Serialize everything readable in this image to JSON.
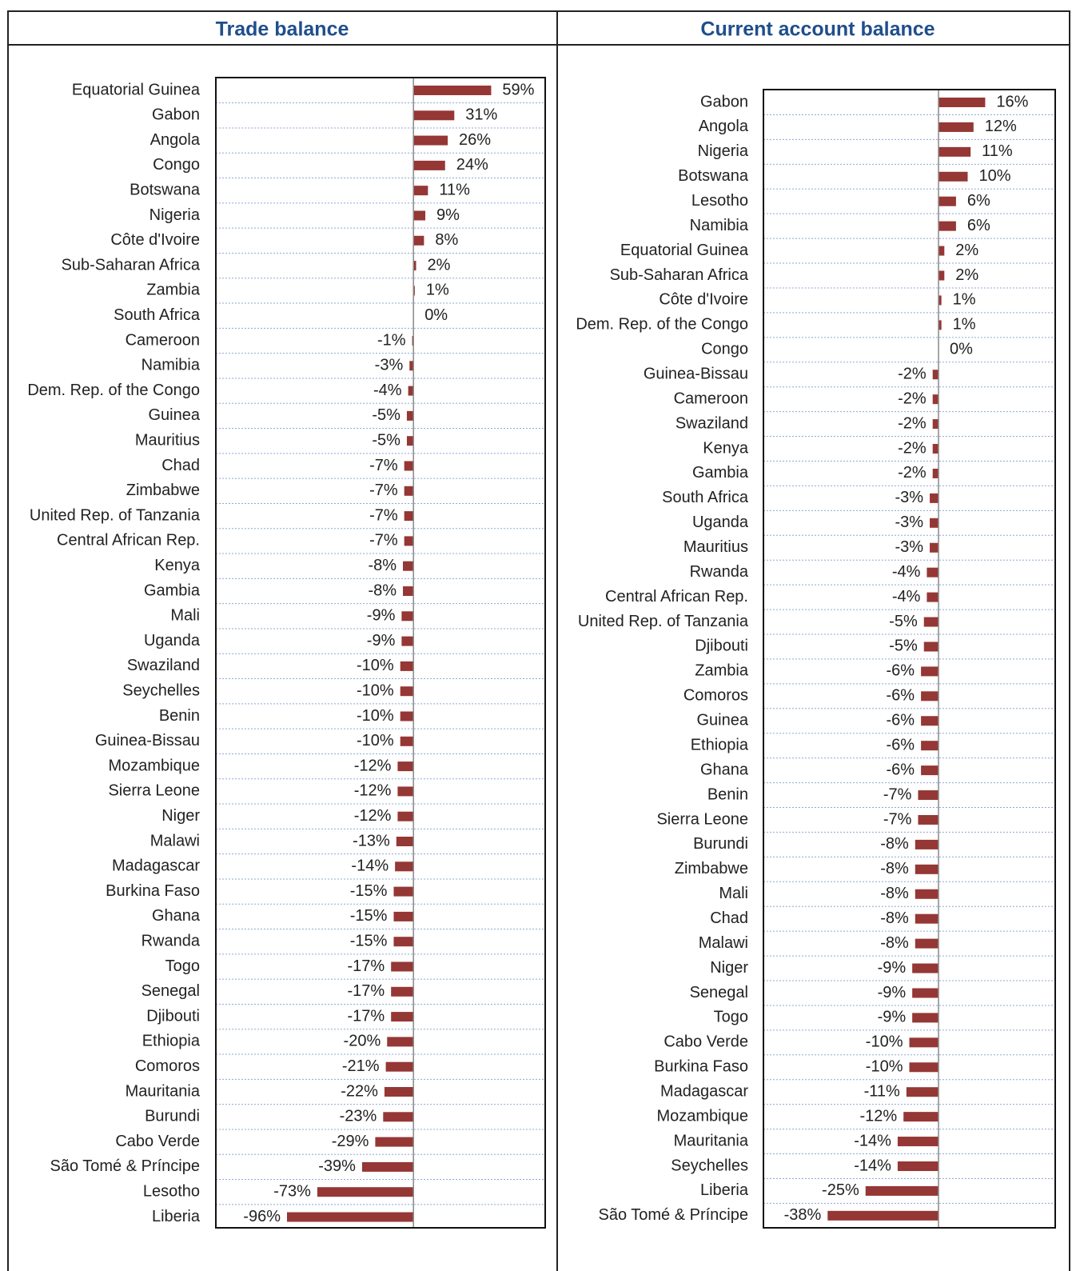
{
  "chart_data": [
    {
      "type": "bar",
      "title": "Trade balance",
      "color": "#953735",
      "grid": true,
      "xlim": [
        -150,
        100
      ],
      "categories": [
        "Equatorial Guinea",
        "Gabon",
        "Angola",
        "Congo",
        "Botswana",
        "Nigeria",
        "Côte d'Ivoire",
        "Sub-Saharan Africa",
        "Zambia",
        "South Africa",
        "Cameroon",
        "Namibia",
        "Dem. Rep. of the Congo",
        "Guinea",
        "Mauritius",
        "Chad",
        "Zimbabwe",
        "United Rep. of Tanzania",
        "Central African Rep.",
        "Kenya",
        "Gambia",
        "Mali",
        "Uganda",
        "Swaziland",
        "Seychelles",
        "Benin",
        "Guinea-Bissau",
        "Mozambique",
        "Sierra Leone",
        "Niger",
        "Malawi",
        "Madagascar",
        "Burkina Faso",
        "Ghana",
        "Rwanda",
        "Togo",
        "Senegal",
        "Djibouti",
        "Ethiopia",
        "Comoros",
        "Mauritania",
        "Burundi",
        "Cabo Verde",
        "São Tomé & Príncipe",
        "Lesotho",
        "Liberia"
      ],
      "values": [
        59,
        31,
        26,
        24,
        11,
        9,
        8,
        2,
        1,
        0,
        -1,
        -3,
        -4,
        -5,
        -5,
        -7,
        -7,
        -7,
        -7,
        -8,
        -8,
        -9,
        -9,
        -10,
        -10,
        -10,
        -10,
        -12,
        -12,
        -12,
        -13,
        -14,
        -15,
        -15,
        -15,
        -17,
        -17,
        -17,
        -20,
        -21,
        -22,
        -23,
        -29,
        -39,
        -73,
        -96
      ],
      "value_labels": [
        "59%",
        "31%",
        "26%",
        "24%",
        "11%",
        "9%",
        "8%",
        "2%",
        "1%",
        "0%",
        "-1%",
        "-3%",
        "-4%",
        "-5%",
        "-5%",
        "-7%",
        "-7%",
        "-7%",
        "-7%",
        "-8%",
        "-8%",
        "-9%",
        "-9%",
        "-10%",
        "-10%",
        "-10%",
        "-10%",
        "-12%",
        "-12%",
        "-12%",
        "-13%",
        "-14%",
        "-15%",
        "-15%",
        "-15%",
        "-17%",
        "-17%",
        "-17%",
        "-20%",
        "-21%",
        "-22%",
        "-23%",
        "-29%",
        "-39%",
        "-73%",
        "-96%"
      ]
    },
    {
      "type": "bar",
      "title": "Current account balance",
      "color": "#953735",
      "grid": true,
      "xlim": [
        -60,
        40
      ],
      "categories": [
        "Gabon",
        "Angola",
        "Nigeria",
        "Botswana",
        "Lesotho",
        "Namibia",
        "Equatorial Guinea",
        "Sub-Saharan Africa",
        "Côte d'Ivoire",
        "Dem. Rep. of the Congo",
        "Congo",
        "Guinea-Bissau",
        "Cameroon",
        "Swaziland",
        "Kenya",
        "Gambia",
        "South Africa",
        "Uganda",
        "Mauritius",
        "Rwanda",
        "Central African Rep.",
        "United Rep. of Tanzania",
        "Djibouti",
        "Zambia",
        "Comoros",
        "Guinea",
        "Ethiopia",
        "Ghana",
        "Benin",
        "Sierra Leone",
        "Burundi",
        "Zimbabwe",
        "Mali",
        "Chad",
        "Malawi",
        "Niger",
        "Senegal",
        "Togo",
        "Cabo Verde",
        "Burkina Faso",
        "Madagascar",
        "Mozambique",
        "Mauritania",
        "Seychelles",
        "Liberia",
        "São Tomé & Príncipe"
      ],
      "values": [
        16,
        12,
        11,
        10,
        6,
        6,
        2,
        2,
        1,
        1,
        0,
        -2,
        -2,
        -2,
        -2,
        -2,
        -3,
        -3,
        -3,
        -4,
        -4,
        -5,
        -5,
        -6,
        -6,
        -6,
        -6,
        -6,
        -7,
        -7,
        -8,
        -8,
        -8,
        -8,
        -8,
        -9,
        -9,
        -9,
        -10,
        -10,
        -11,
        -12,
        -14,
        -14,
        -25,
        -38
      ],
      "value_labels": [
        "16%",
        "12%",
        "11%",
        "10%",
        "6%",
        "6%",
        "2%",
        "2%",
        "1%",
        "1%",
        "0%",
        "-2%",
        "-2%",
        "-2%",
        "-2%",
        "-2%",
        "-3%",
        "-3%",
        "-3%",
        "-4%",
        "-4%",
        "-5%",
        "-5%",
        "-6%",
        "-6%",
        "-6%",
        "-6%",
        "-6%",
        "-7%",
        "-7%",
        "-8%",
        "-8%",
        "-8%",
        "-8%",
        "-8%",
        "-9%",
        "-9%",
        "-9%",
        "-10%",
        "-10%",
        "-11%",
        "-12%",
        "-14%",
        "-14%",
        "-25%",
        "-38%"
      ]
    }
  ]
}
